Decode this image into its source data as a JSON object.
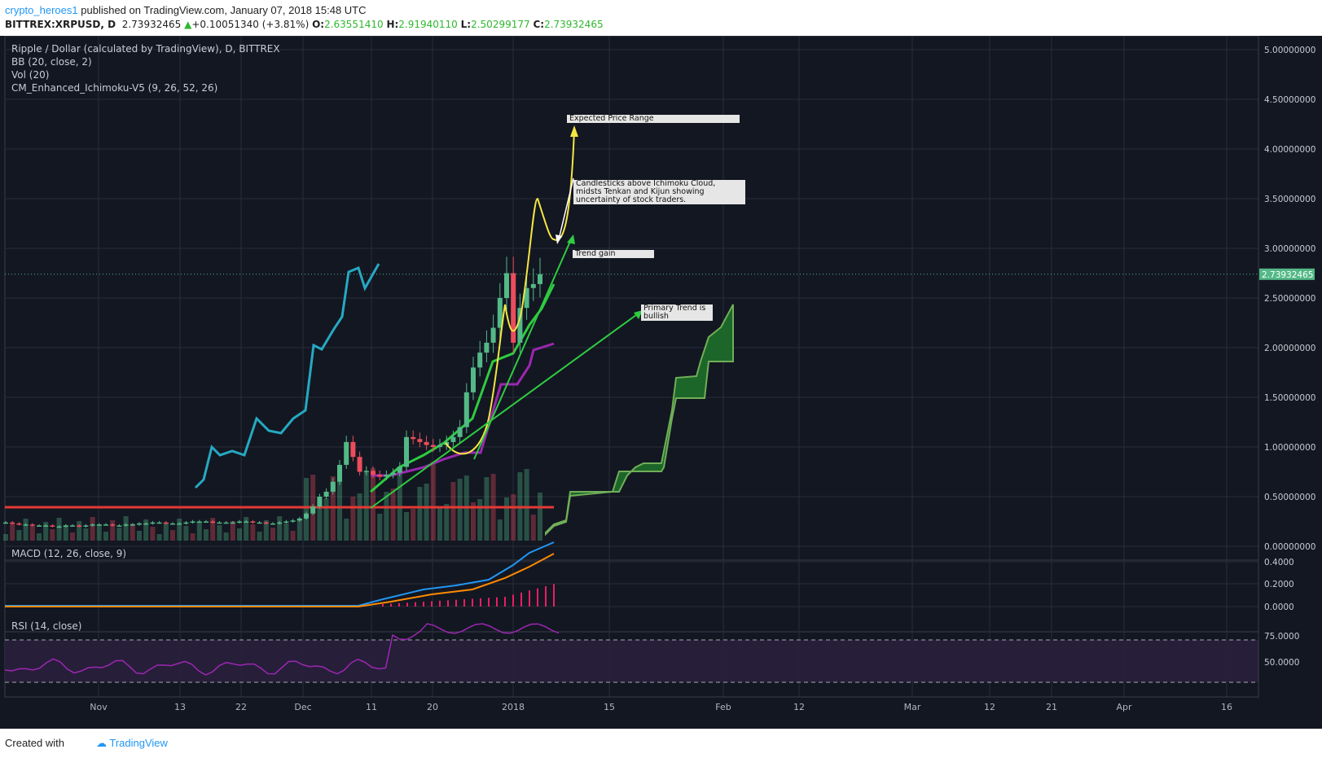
{
  "header": {
    "author": "crypto_heroes1",
    "published": "published on TradingView.com, January 07, 2018 15:48 UTC",
    "symbol": "BITTREX:XRPUSD, D",
    "last": "2.73932465",
    "change": "+0.10051340 (+3.81%)",
    "o_label": "O:",
    "o": "2.63551410",
    "h_label": "H:",
    "h": "2.91940110",
    "l_label": "L:",
    "l": "2.50299177",
    "c_label": "C:",
    "c": "2.73932465"
  },
  "legends": {
    "main": "Ripple / Dollar (calculated by TradingView), D, BITTREX",
    "bb": "BB (20, close, 2)",
    "vol": "Vol (20)",
    "ichimoku": "CM_Enhanced_Ichimoku-V5 (9, 26, 52, 26)",
    "macd": "MACD (12, 26, close, 9)",
    "rsi": "RSI (14, close)"
  },
  "annotations": {
    "expected": "Expected Price Range",
    "cloud": [
      "Candlesticks above Ichimoku Cloud,",
      "midsts Tenkan and Kijun showing",
      "uncertainty of stock traders."
    ],
    "trend_gain": "Trend gain",
    "primary": [
      "Primary Trend is",
      "bullish"
    ]
  },
  "footer": {
    "created": "Created with",
    "brand": "TradingView"
  },
  "colors": {
    "up": "#53b987",
    "down": "#eb4d5c",
    "bg": "#131722",
    "accent": "#2196f3"
  },
  "chart_data": {
    "type": "candlestick",
    "title": "Ripple / Dollar (calculated by TradingView), D, BITTREX",
    "price_axis": {
      "ticks": [
        "5.00000000",
        "4.50000000",
        "4.00000000",
        "3.50000000",
        "3.00000000",
        "2.50000000",
        "2.00000000",
        "1.50000000",
        "1.00000000",
        "0.50000000",
        "0.00000000"
      ],
      "last_price": "2.73932465",
      "ylim": [
        0,
        5
      ]
    },
    "x_axis": {
      "ticks": [
        "Nov",
        "13",
        "22",
        "Dec",
        "11",
        "20",
        "2018",
        "15",
        "Feb",
        "12",
        "Mar",
        "12",
        "21",
        "Apr",
        "16"
      ]
    },
    "close_series": [
      0.24,
      0.23,
      0.22,
      0.22,
      0.21,
      0.21,
      0.21,
      0.2,
      0.2,
      0.21,
      0.21,
      0.2,
      0.21,
      0.22,
      0.22,
      0.22,
      0.21,
      0.21,
      0.22,
      0.22,
      0.23,
      0.23,
      0.24,
      0.24,
      0.23,
      0.23,
      0.23,
      0.24,
      0.25,
      0.25,
      0.25,
      0.24,
      0.24,
      0.24,
      0.24,
      0.25,
      0.25,
      0.24,
      0.24,
      0.23,
      0.23,
      0.24,
      0.25,
      0.26,
      0.28,
      0.33,
      0.4,
      0.5,
      0.55,
      0.65,
      0.82,
      1.05,
      0.9,
      0.75,
      0.76,
      0.72,
      0.7,
      0.72,
      0.74,
      0.8,
      1.1,
      1.08,
      1.05,
      1.02,
      1.0,
      1.02,
      1.05,
      1.1,
      1.2,
      1.55,
      1.8,
      1.95,
      2.05,
      2.2,
      2.5,
      2.75,
      2.05,
      2.4,
      2.6,
      2.64,
      2.74
    ],
    "macd": {
      "ticks": [
        "0.4000",
        "0.2000",
        "0.0000"
      ]
    },
    "rsi": {
      "ticks": [
        "75.0000",
        "50.0000"
      ]
    }
  }
}
